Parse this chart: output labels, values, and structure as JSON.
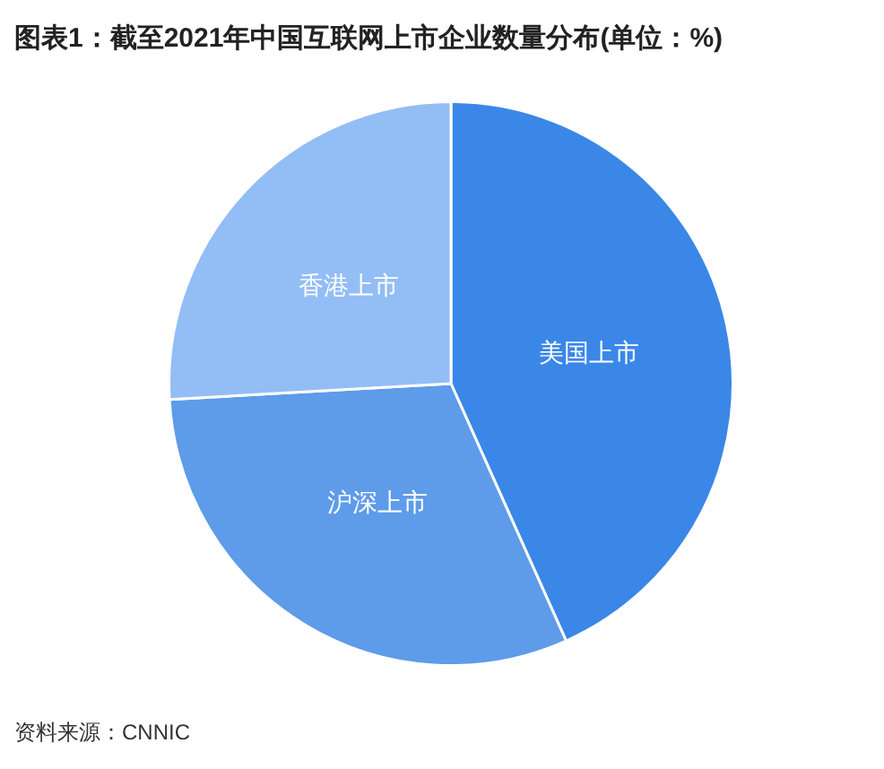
{
  "chart_data": {
    "type": "pie",
    "title": "图表1：截至2021年中国互联网上市企业数量分布(单位：%)",
    "categories": [
      "美国上市",
      "沪深上市",
      "香港上市"
    ],
    "values": [
      43.3,
      30.8,
      25.9
    ],
    "colors": [
      "#3a87e8",
      "#5e9be9",
      "#93bdf5"
    ],
    "legend": false,
    "annotations": [
      "资料来源：CNNIC"
    ]
  }
}
